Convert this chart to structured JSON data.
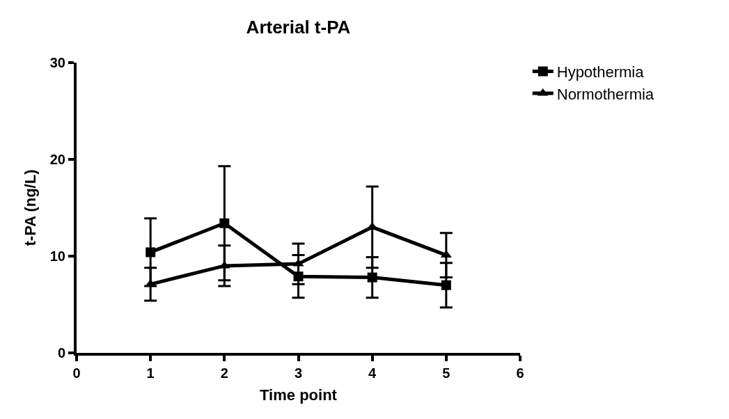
{
  "chart_data": {
    "type": "line",
    "title": "Arterial t-PA",
    "xlabel": "Time point",
    "ylabel": "t-PA (ng/L)",
    "x": [
      1,
      2,
      3,
      4,
      5
    ],
    "series": [
      {
        "name": "Hypothermia",
        "color": "#000000",
        "marker": "square",
        "values": [
          10.4,
          13.4,
          7.9,
          7.8,
          7.0
        ],
        "errors": [
          3.5,
          5.9,
          2.2,
          2.1,
          2.3
        ]
      },
      {
        "name": "Normothermia",
        "color": "#000000",
        "marker": "triangle",
        "values": [
          7.1,
          9.0,
          9.2,
          13.0,
          10.1
        ],
        "errors": [
          1.7,
          2.1,
          2.1,
          4.2,
          2.3
        ]
      }
    ],
    "xlim": [
      0,
      6
    ],
    "xticks": [
      0,
      1,
      2,
      3,
      4,
      5,
      6
    ],
    "ylim": [
      0,
      30
    ],
    "yticks": [
      0,
      10,
      20,
      30
    ],
    "legend": "top right",
    "line_style": "solid"
  }
}
